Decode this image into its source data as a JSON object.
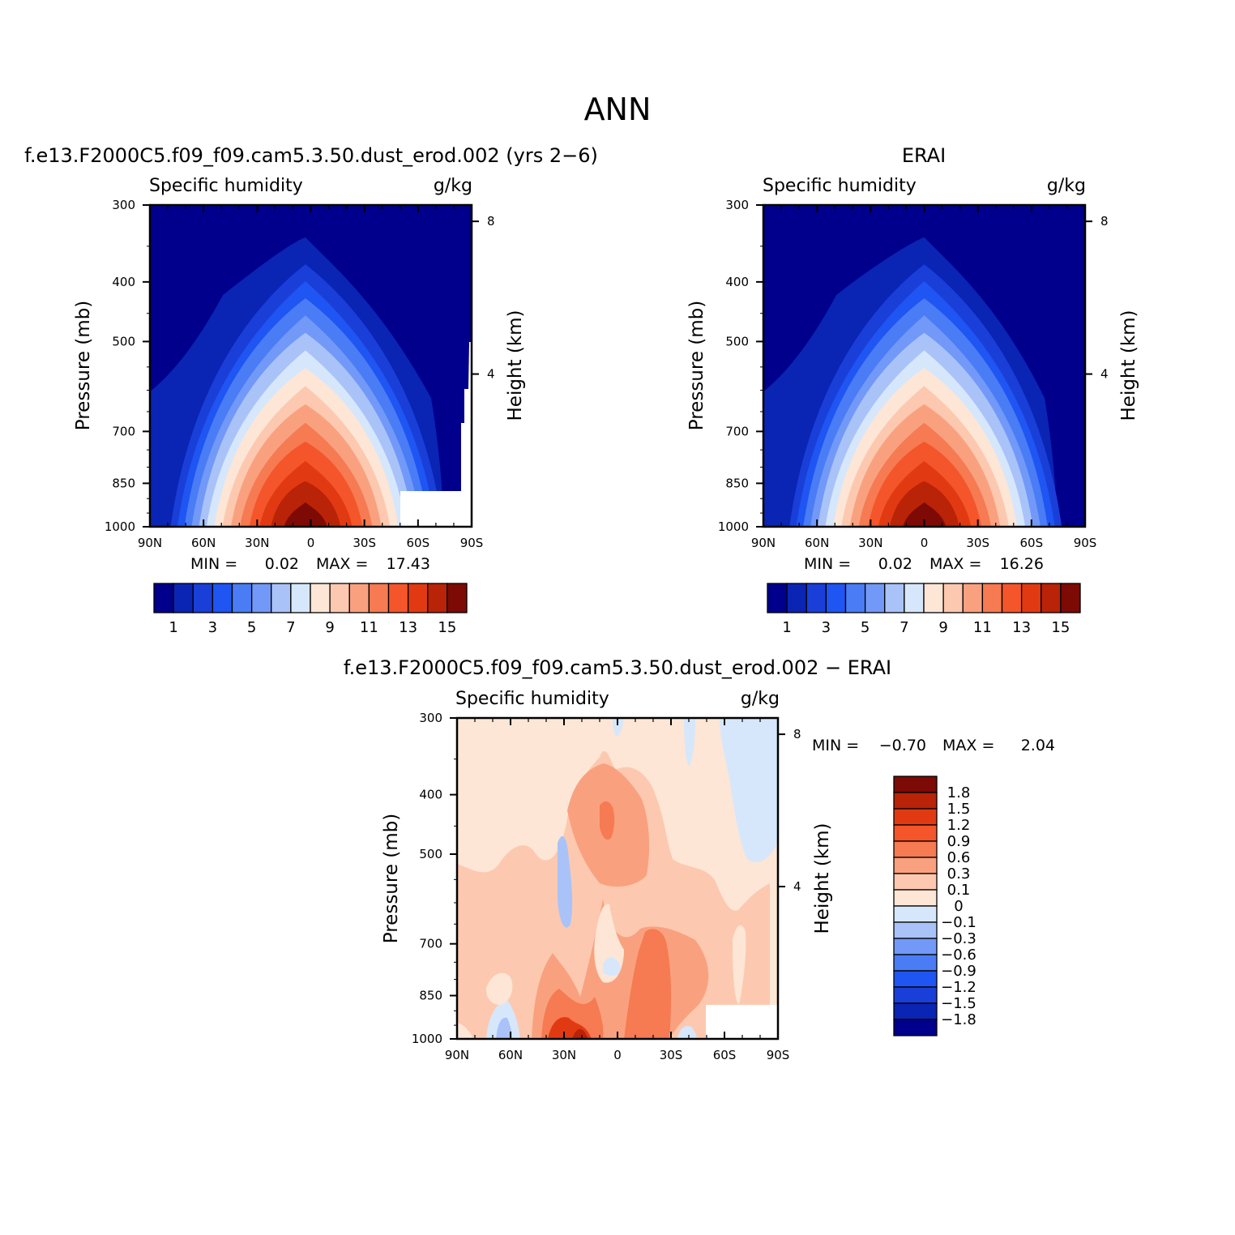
{
  "figure": {
    "title": "ANN",
    "min_label": "MIN =",
    "max_label": "MAX ="
  },
  "chart_data": [
    {
      "type": "contour",
      "case_title": "f.e13.F2000C5.f09_f09.cam5.3.50.dust_erod.002 (yrs 2−6)",
      "title": "Specific humidity",
      "units": "g/kg",
      "ylabel": "Pressure (mb)",
      "y2label": "Height (km)",
      "ylim": [
        1000,
        300
      ],
      "yticks": [
        "300",
        "400",
        "500",
        "700",
        "850",
        "1000"
      ],
      "y2ticks": [
        "8",
        "4"
      ],
      "xlim": [
        90,
        -90
      ],
      "xticks": [
        "90N",
        "60N",
        "30N",
        "0",
        "30S",
        "60S",
        "90S"
      ],
      "min": "0.02",
      "max": "17.43",
      "levels": [
        "1",
        "3",
        "5",
        "7",
        "9",
        "11",
        "13",
        "15"
      ],
      "peak_value": 17.43,
      "peak_lat": 3,
      "colors": [
        "#00008c",
        "#0a24b4",
        "#1a3fd8",
        "#1f55f2",
        "#4a7cf6",
        "#7299f7",
        "#a9c3f8",
        "#d6e7fc",
        "#fde6d6",
        "#fcc9b0",
        "#f9a17f",
        "#f67a52",
        "#f4552a",
        "#e13a12",
        "#b92307",
        "#7d0a05"
      ]
    },
    {
      "type": "contour",
      "case_title": "ERAI",
      "title": "Specific humidity",
      "units": "g/kg",
      "ylabel": "Pressure (mb)",
      "y2label": "Height (km)",
      "ylim": [
        1000,
        300
      ],
      "yticks": [
        "300",
        "400",
        "500",
        "700",
        "850",
        "1000"
      ],
      "y2ticks": [
        "8",
        "4"
      ],
      "xlim": [
        90,
        -90
      ],
      "xticks": [
        "90N",
        "60N",
        "30N",
        "0",
        "30S",
        "60S",
        "90S"
      ],
      "min": "0.02",
      "max": "16.26",
      "levels": [
        "1",
        "3",
        "5",
        "7",
        "9",
        "11",
        "13",
        "15"
      ],
      "peak_value": 16.26,
      "peak_lat": 0,
      "colors": [
        "#00008c",
        "#0a24b4",
        "#1a3fd8",
        "#1f55f2",
        "#4a7cf6",
        "#7299f7",
        "#a9c3f8",
        "#d6e7fc",
        "#fde6d6",
        "#fcc9b0",
        "#f9a17f",
        "#f67a52",
        "#f4552a",
        "#e13a12",
        "#b92307",
        "#7d0a05"
      ]
    },
    {
      "type": "contour",
      "case_title": "f.e13.F2000C5.f09_f09.cam5.3.50.dust_erod.002 − ERAI",
      "title": "Specific humidity",
      "units": "g/kg",
      "ylabel": "Pressure (mb)",
      "y2label": "Height (km)",
      "ylim": [
        1000,
        300
      ],
      "yticks": [
        "300",
        "400",
        "500",
        "700",
        "850",
        "1000"
      ],
      "y2ticks": [
        "8",
        "4"
      ],
      "xlim": [
        90,
        -90
      ],
      "xticks": [
        "90N",
        "60N",
        "30N",
        "0",
        "30S",
        "60S",
        "90S"
      ],
      "min": "−0.70",
      "max": "2.04",
      "levels": [
        "1.8",
        "1.5",
        "1.2",
        "0.9",
        "0.6",
        "0.3",
        "0.1",
        "0",
        "−0.1",
        "−0.3",
        "−0.6",
        "−0.9",
        "−1.2",
        "−1.5",
        "−1.8"
      ],
      "colors": [
        "#7d0a05",
        "#b92307",
        "#e13a12",
        "#f4552a",
        "#f67a52",
        "#f9a17f",
        "#fcc9b0",
        "#fde6d6",
        "#d6e7fc",
        "#a9c3f8",
        "#7299f7",
        "#4a7cf6",
        "#1f55f2",
        "#1a3fd8",
        "#0a24b4",
        "#00008c"
      ]
    }
  ]
}
